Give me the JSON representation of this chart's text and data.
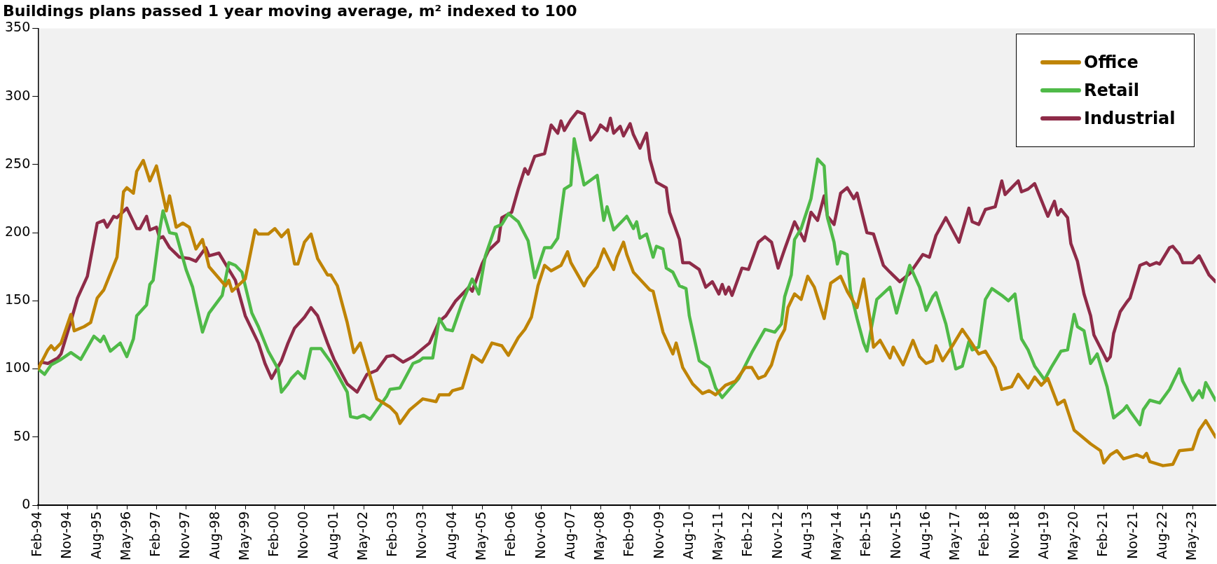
{
  "chart_data": {
    "type": "line",
    "title": "Buildings plans passed 1 year moving average, m² indexed to 100",
    "xlim": [
      "1994-02",
      "2023-12"
    ],
    "ylim": [
      0,
      350
    ],
    "yticks": [
      0,
      50,
      100,
      150,
      200,
      250,
      300,
      350
    ],
    "xticks": [
      {
        "value": "1994-02",
        "label": "Feb-94"
      },
      {
        "value": "1994-11",
        "label": "Nov-94"
      },
      {
        "value": "1995-08",
        "label": "Aug-95"
      },
      {
        "value": "1996-05",
        "label": "May-96"
      },
      {
        "value": "1997-02",
        "label": "Feb-97"
      },
      {
        "value": "1997-11",
        "label": "Nov-97"
      },
      {
        "value": "1998-08",
        "label": "Aug-98"
      },
      {
        "value": "1999-05",
        "label": "May-99"
      },
      {
        "value": "2000-02",
        "label": "Feb-00"
      },
      {
        "value": "2000-11",
        "label": "Nov-00"
      },
      {
        "value": "2001-08",
        "label": "Aug-01"
      },
      {
        "value": "2002-05",
        "label": "May-02"
      },
      {
        "value": "2003-02",
        "label": "Feb-03"
      },
      {
        "value": "2003-11",
        "label": "Nov-03"
      },
      {
        "value": "2004-08",
        "label": "Aug-04"
      },
      {
        "value": "2005-05",
        "label": "May-05"
      },
      {
        "value": "2006-02",
        "label": "Feb-06"
      },
      {
        "value": "2006-11",
        "label": "Nov-06"
      },
      {
        "value": "2007-08",
        "label": "Aug-07"
      },
      {
        "value": "2008-05",
        "label": "May-08"
      },
      {
        "value": "2009-02",
        "label": "Feb-09"
      },
      {
        "value": "2009-11",
        "label": "Nov-09"
      },
      {
        "value": "2010-08",
        "label": "Aug-10"
      },
      {
        "value": "2011-05",
        "label": "May-11"
      },
      {
        "value": "2012-02",
        "label": "Feb-12"
      },
      {
        "value": "2012-11",
        "label": "Nov-12"
      },
      {
        "value": "2013-08",
        "label": "Aug-13"
      },
      {
        "value": "2014-05",
        "label": "May-14"
      },
      {
        "value": "2015-02",
        "label": "Feb-15"
      },
      {
        "value": "2015-11",
        "label": "Nov-15"
      },
      {
        "value": "2016-08",
        "label": "Aug-16"
      },
      {
        "value": "2017-05",
        "label": "May-17"
      },
      {
        "value": "2018-02",
        "label": "Feb-18"
      },
      {
        "value": "2018-11",
        "label": "Nov-18"
      },
      {
        "value": "2019-08",
        "label": "Aug-19"
      },
      {
        "value": "2020-05",
        "label": "May-20"
      },
      {
        "value": "2021-02",
        "label": "Feb-21"
      },
      {
        "value": "2021-11",
        "label": "Nov-21"
      },
      {
        "value": "2022-08",
        "label": "Aug-22"
      },
      {
        "value": "2023-05",
        "label": "May-23"
      }
    ],
    "grid": false,
    "legend": "top right",
    "series": [
      {
        "name": "Office",
        "color": "#bf8406",
        "x": [
          "1994-02",
          "1994-05",
          "1994-06",
          "1994-07",
          "1994-09",
          "1994-12",
          "1995-01",
          "1995-04",
          "1995-06",
          "1995-08",
          "1995-10",
          "1996-02",
          "1996-04",
          "1996-05",
          "1996-07",
          "1996-08",
          "1996-10",
          "1996-12",
          "1997-02",
          "1997-05",
          "1997-06",
          "1997-08",
          "1997-10",
          "1997-12",
          "1998-02",
          "1998-04",
          "1998-06",
          "1998-11",
          "1998-12",
          "1999-01",
          "1999-05",
          "1999-08",
          "1999-09",
          "1999-12",
          "2000-02",
          "2000-04",
          "2000-06",
          "2000-08",
          "2000-09",
          "2000-11",
          "2001-01",
          "2001-03",
          "2001-06",
          "2001-07",
          "2001-09",
          "2001-12",
          "2002-02",
          "2002-04",
          "2002-09",
          "2003-01",
          "2003-03",
          "2003-04",
          "2003-07",
          "2003-09",
          "2003-11",
          "2004-03",
          "2004-04",
          "2004-07",
          "2004-08",
          "2004-11",
          "2005-02",
          "2005-05",
          "2005-08",
          "2005-11",
          "2006-01",
          "2006-04",
          "2006-06",
          "2006-08",
          "2006-10",
          "2006-12",
          "2007-02",
          "2007-05",
          "2007-07",
          "2007-08",
          "2007-12",
          "2008-01",
          "2008-04",
          "2008-06",
          "2008-09",
          "2008-10",
          "2008-12",
          "2009-01",
          "2009-03",
          "2009-08",
          "2009-09",
          "2009-12",
          "2010-03",
          "2010-04",
          "2010-06",
          "2010-09",
          "2010-12",
          "2011-02",
          "2011-04",
          "2011-07",
          "2011-10",
          "2012-01",
          "2012-03",
          "2012-05",
          "2012-07",
          "2012-09",
          "2012-11",
          "2013-01",
          "2013-02",
          "2013-04",
          "2013-06",
          "2013-08",
          "2013-10",
          "2014-01",
          "2014-03",
          "2014-06",
          "2014-08",
          "2014-11",
          "2015-01",
          "2015-03",
          "2015-04",
          "2015-06",
          "2015-09",
          "2015-10",
          "2016-01",
          "2016-03",
          "2016-04",
          "2016-06",
          "2016-08",
          "2016-10",
          "2016-11",
          "2017-01",
          "2017-04",
          "2017-07",
          "2017-09",
          "2017-12",
          "2018-02",
          "2018-05",
          "2018-07",
          "2018-10",
          "2018-12",
          "2019-03",
          "2019-05",
          "2019-07",
          "2019-09",
          "2019-12",
          "2020-02",
          "2020-05",
          "2020-07",
          "2020-10",
          "2021-01",
          "2021-02",
          "2021-04",
          "2021-06",
          "2021-08",
          "2021-12",
          "2022-02",
          "2022-03",
          "2022-04",
          "2022-08",
          "2022-11",
          "2023-01",
          "2023-05",
          "2023-07",
          "2023-09",
          "2023-12"
        ],
        "values": [
          100,
          114,
          117,
          114,
          119,
          140,
          128,
          131,
          134,
          152,
          158,
          182,
          230,
          233,
          229,
          245,
          253,
          238,
          249,
          216,
          227,
          204,
          207,
          204,
          188,
          195,
          175,
          161,
          165,
          157,
          166,
          202,
          199,
          199,
          203,
          197,
          202,
          177,
          177,
          193,
          199,
          181,
          169,
          169,
          161,
          134,
          112,
          119,
          78,
          72,
          67,
          60,
          70,
          74,
          78,
          76,
          81,
          81,
          84,
          86,
          110,
          105,
          119,
          117,
          110,
          123,
          129,
          138,
          161,
          176,
          172,
          176,
          186,
          178,
          161,
          166,
          175,
          188,
          173,
          182,
          193,
          184,
          171,
          158,
          157,
          127,
          111,
          119,
          101,
          89,
          82,
          84,
          81,
          88,
          91,
          101,
          101,
          93,
          95,
          103,
          120,
          129,
          145,
          155,
          151,
          168,
          160,
          137,
          163,
          168,
          157,
          145,
          166,
          135,
          116,
          121,
          108,
          116,
          103,
          115,
          121,
          109,
          104,
          106,
          117,
          106,
          117,
          129,
          122,
          111,
          113,
          101,
          85,
          87,
          96,
          86,
          94,
          88,
          93,
          74,
          77,
          55,
          51,
          45,
          40,
          31,
          37,
          40,
          34,
          37,
          35,
          38,
          32,
          29,
          30,
          40,
          41,
          55,
          62,
          50
        ]
      },
      {
        "name": "Retail",
        "color": "#4fba48",
        "x": [
          "1994-02",
          "1994-04",
          "1994-06",
          "1994-09",
          "1994-12",
          "1995-03",
          "1995-07",
          "1995-09",
          "1995-10",
          "1995-12",
          "1996-03",
          "1996-05",
          "1996-07",
          "1996-08",
          "1996-11",
          "1996-12",
          "1997-01",
          "1997-03",
          "1997-04",
          "1997-06",
          "1997-08",
          "1997-11",
          "1998-01",
          "1998-04",
          "1998-06",
          "1998-10",
          "1998-12",
          "1999-02",
          "1999-04",
          "1999-07",
          "1999-09",
          "1999-12",
          "2000-03",
          "2000-04",
          "2000-06",
          "2000-07",
          "2000-09",
          "2000-11",
          "2001-01",
          "2001-04",
          "2001-07",
          "2001-12",
          "2002-01",
          "2002-03",
          "2002-05",
          "2002-07",
          "2002-12",
          "2003-01",
          "2003-04",
          "2003-06",
          "2003-08",
          "2003-10",
          "2003-11",
          "2004-02",
          "2004-04",
          "2004-06",
          "2004-08",
          "2004-11",
          "2005-02",
          "2005-04",
          "2005-06",
          "2005-09",
          "2005-11",
          "2006-01",
          "2006-04",
          "2006-07",
          "2006-09",
          "2006-12",
          "2007-02",
          "2007-04",
          "2007-06",
          "2007-08",
          "2007-09",
          "2007-12",
          "2008-04",
          "2008-06",
          "2008-07",
          "2008-09",
          "2009-01",
          "2009-03",
          "2009-04",
          "2009-05",
          "2009-07",
          "2009-09",
          "2009-10",
          "2009-12",
          "2010-01",
          "2010-03",
          "2010-05",
          "2010-07",
          "2010-08",
          "2010-11",
          "2011-02",
          "2011-04",
          "2011-06",
          "2011-11",
          "2012-03",
          "2012-07",
          "2012-10",
          "2012-12",
          "2013-01",
          "2013-03",
          "2013-04",
          "2013-06",
          "2013-09",
          "2013-11",
          "2014-01",
          "2014-02",
          "2014-04",
          "2014-05",
          "2014-06",
          "2014-08",
          "2014-09",
          "2014-11",
          "2015-01",
          "2015-02",
          "2015-05",
          "2015-09",
          "2015-11",
          "2016-03",
          "2016-06",
          "2016-08",
          "2016-10",
          "2016-11",
          "2017-02",
          "2017-05",
          "2017-07",
          "2017-09",
          "2017-10",
          "2017-12",
          "2018-02",
          "2018-04",
          "2018-07",
          "2018-09",
          "2018-11",
          "2019-01",
          "2019-03",
          "2019-05",
          "2019-08",
          "2019-10",
          "2020-01",
          "2020-03",
          "2020-05",
          "2020-06",
          "2020-08",
          "2020-10",
          "2020-12",
          "2021-03",
          "2021-05",
          "2021-08",
          "2021-09",
          "2021-10",
          "2022-01",
          "2022-02",
          "2022-04",
          "2022-07",
          "2022-10",
          "2023-01",
          "2023-02",
          "2023-05",
          "2023-07",
          "2023-08",
          "2023-09",
          "2023-12"
        ],
        "values": [
          100,
          96,
          103,
          107,
          112,
          107,
          124,
          120,
          124,
          113,
          119,
          109,
          122,
          139,
          147,
          162,
          165,
          202,
          216,
          200,
          199,
          173,
          160,
          127,
          141,
          154,
          178,
          176,
          171,
          141,
          131,
          113,
          100,
          83,
          89,
          93,
          98,
          93,
          115,
          115,
          105,
          83,
          65,
          64,
          66,
          63,
          80,
          85,
          86,
          95,
          104,
          106,
          108,
          108,
          137,
          129,
          128,
          149,
          166,
          155,
          183,
          204,
          206,
          214,
          208,
          194,
          167,
          189,
          189,
          196,
          232,
          235,
          269,
          235,
          242,
          209,
          219,
          202,
          212,
          203,
          208,
          196,
          199,
          182,
          190,
          188,
          174,
          171,
          161,
          159,
          139,
          106,
          101,
          86,
          79,
          93,
          112,
          129,
          127,
          133,
          153,
          169,
          195,
          203,
          225,
          254,
          249,
          211,
          193,
          177,
          186,
          184,
          157,
          137,
          119,
          113,
          151,
          160,
          141,
          176,
          160,
          143,
          153,
          156,
          133,
          100,
          102,
          120,
          114,
          116,
          151,
          159,
          154,
          150,
          155,
          122,
          114,
          102,
          92,
          101,
          113,
          114,
          140,
          131,
          128,
          104,
          111,
          87,
          64,
          70,
          73,
          69,
          59,
          70,
          77,
          75,
          85,
          100,
          91,
          77,
          84,
          79,
          90,
          77
        ]
      },
      {
        "name": "Industrial",
        "color": "#8e2b48",
        "x": [
          "1994-02",
          "1994-03",
          "1994-05",
          "1994-08",
          "1994-09",
          "1994-12",
          "1995-02",
          "1995-05",
          "1995-08",
          "1995-10",
          "1995-11",
          "1996-01",
          "1996-02",
          "1996-05",
          "1996-08",
          "1996-09",
          "1996-11",
          "1996-12",
          "1997-02",
          "1997-03",
          "1997-04",
          "1997-06",
          "1997-09",
          "1997-12",
          "1998-02",
          "1998-05",
          "1998-06",
          "1998-09",
          "1998-11",
          "1999-02",
          "1999-05",
          "1999-09",
          "1999-11",
          "2000-01",
          "2000-04",
          "2000-06",
          "2000-08",
          "2000-11",
          "2001-01",
          "2001-03",
          "2001-06",
          "2001-08",
          "2001-12",
          "2002-03",
          "2002-06",
          "2002-09",
          "2002-12",
          "2003-02",
          "2003-05",
          "2003-08",
          "2003-11",
          "2004-01",
          "2004-04",
          "2004-06",
          "2004-09",
          "2005-01",
          "2005-02",
          "2005-05",
          "2005-07",
          "2005-10",
          "2005-11",
          "2006-02",
          "2006-04",
          "2006-06",
          "2006-07",
          "2006-09",
          "2006-12",
          "2007-02",
          "2007-04",
          "2007-05",
          "2007-06",
          "2007-08",
          "2007-10",
          "2007-12",
          "2008-02",
          "2008-04",
          "2008-05",
          "2008-07",
          "2008-08",
          "2008-09",
          "2008-11",
          "2008-12",
          "2009-02",
          "2009-03",
          "2009-05",
          "2009-07",
          "2009-08",
          "2009-10",
          "2010-01",
          "2010-02",
          "2010-05",
          "2010-06",
          "2010-08",
          "2010-11",
          "2011-01",
          "2011-03",
          "2011-05",
          "2011-06",
          "2011-07",
          "2011-08",
          "2011-09",
          "2011-12",
          "2012-02",
          "2012-05",
          "2012-07",
          "2012-09",
          "2012-11",
          "2013-01",
          "2013-04",
          "2013-07",
          "2013-09",
          "2013-11",
          "2014-01",
          "2014-02",
          "2014-04",
          "2014-06",
          "2014-08",
          "2014-10",
          "2014-11",
          "2015-02",
          "2015-04",
          "2015-07",
          "2015-09",
          "2015-12",
          "2016-03",
          "2016-07",
          "2016-09",
          "2016-11",
          "2017-02",
          "2017-06",
          "2017-09",
          "2017-10",
          "2017-12",
          "2018-02",
          "2018-05",
          "2018-07",
          "2018-08",
          "2018-10",
          "2018-12",
          "2019-01",
          "2019-03",
          "2019-05",
          "2019-07",
          "2019-09",
          "2019-11",
          "2019-12",
          "2020-01",
          "2020-03",
          "2020-04",
          "2020-06",
          "2020-08",
          "2020-10",
          "2020-11",
          "2021-03",
          "2021-04",
          "2021-05",
          "2021-07",
          "2021-09",
          "2021-10",
          "2022-01",
          "2022-03",
          "2022-04",
          "2022-06",
          "2022-07",
          "2022-10",
          "2022-11",
          "2023-01",
          "2023-02",
          "2023-05",
          "2023-07",
          "2023-10",
          "2023-12"
        ],
        "values": [
          100,
          105,
          104,
          108,
          111,
          135,
          152,
          168,
          207,
          209,
          204,
          212,
          211,
          218,
          203,
          203,
          212,
          202,
          204,
          196,
          197,
          189,
          182,
          181,
          179,
          189,
          183,
          185,
          177,
          165,
          139,
          119,
          104,
          93,
          106,
          119,
          130,
          138,
          145,
          139,
          119,
          107,
          89,
          83,
          96,
          99,
          109,
          110,
          105,
          109,
          115,
          119,
          135,
          139,
          150,
          160,
          157,
          177,
          187,
          194,
          211,
          215,
          232,
          247,
          243,
          256,
          258,
          279,
          273,
          282,
          275,
          283,
          289,
          287,
          268,
          274,
          279,
          275,
          284,
          273,
          278,
          271,
          280,
          272,
          262,
          273,
          254,
          237,
          233,
          215,
          195,
          178,
          178,
          173,
          160,
          164,
          155,
          162,
          155,
          160,
          154,
          174,
          173,
          193,
          197,
          193,
          174,
          188,
          208,
          194,
          215,
          209,
          227,
          212,
          206,
          229,
          233,
          225,
          229,
          200,
          199,
          176,
          171,
          164,
          170,
          184,
          182,
          198,
          211,
          193,
          218,
          208,
          206,
          217,
          219,
          238,
          228,
          233,
          238,
          230,
          232,
          236,
          224,
          212,
          223,
          213,
          217,
          211,
          192,
          179,
          155,
          139,
          125,
          106,
          109,
          126,
          142,
          149,
          152,
          176,
          178,
          176,
          178,
          177,
          189,
          190,
          184,
          178,
          178,
          183,
          169,
          164
        ]
      }
    ]
  }
}
